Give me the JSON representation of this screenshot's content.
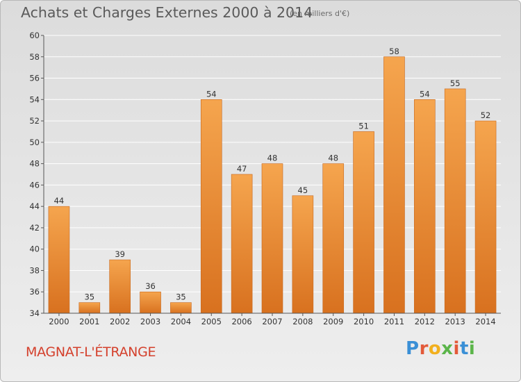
{
  "title": "Achats et Charges Externes 2000 à 2014",
  "subtitle": "(en milliers d'€)",
  "place": "MAGNAT-L'ÉTRANGE",
  "logo": {
    "letters": [
      "P",
      "r",
      "o",
      "x",
      "i",
      "t",
      "i"
    ],
    "colors": [
      "#3a8fd6",
      "#e35a3a",
      "#f2b01e",
      "#5bb54a",
      "#e35a3a",
      "#3a8fd6",
      "#5bb54a"
    ]
  },
  "colors": {
    "bar_top": "#f5a54e",
    "bar_bottom": "#d8711f",
    "bar_edge": "#c7681e",
    "grid": "#ffffff",
    "axis": "#555555",
    "label": "#333333"
  },
  "chart_data": {
    "type": "bar",
    "categories": [
      "2000",
      "2001",
      "2002",
      "2003",
      "2004",
      "2005",
      "2006",
      "2007",
      "2008",
      "2009",
      "2010",
      "2011",
      "2012",
      "2013",
      "2014"
    ],
    "values": [
      44,
      35,
      39,
      36,
      35,
      54,
      47,
      48,
      45,
      48,
      51,
      58,
      54,
      55,
      52
    ],
    "ylim": [
      34,
      60
    ],
    "yticks": [
      34,
      36,
      38,
      40,
      42,
      44,
      46,
      48,
      50,
      52,
      54,
      56,
      58,
      60
    ],
    "grid": true,
    "data_labels": true
  }
}
